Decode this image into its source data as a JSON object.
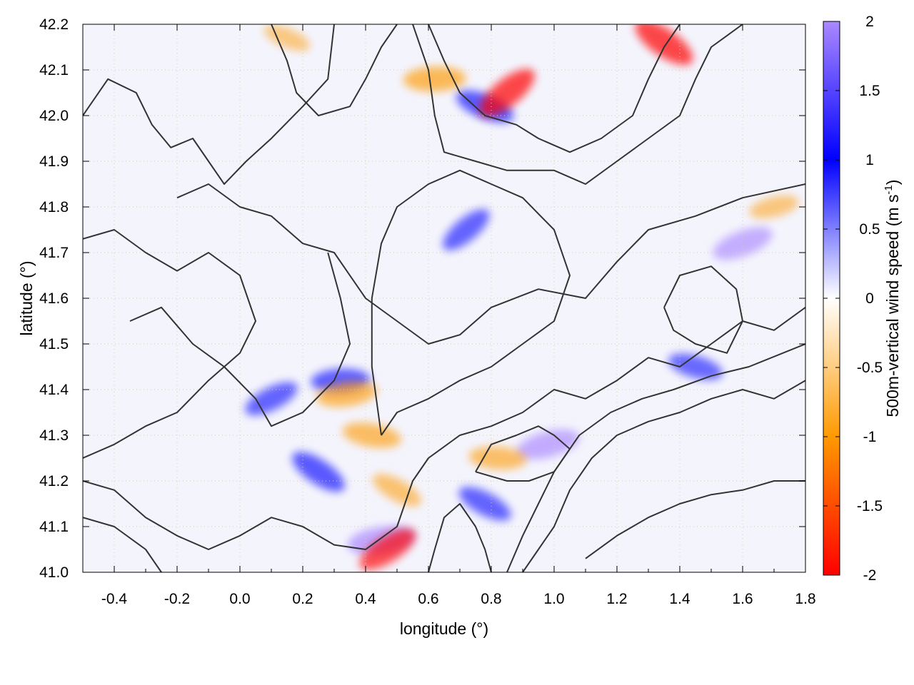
{
  "chart_data": {
    "type": "heatmap",
    "title": "",
    "xlabel": "longitude (°)",
    "ylabel": "latitude (°)",
    "colorbar_label": "500m-vertical wind speed (m s",
    "colorbar_label_sup": "-1",
    "colorbar_label_end": ")",
    "xlim": [
      -0.5,
      1.8
    ],
    "ylim": [
      41.0,
      42.2
    ],
    "clim": [
      -2,
      2
    ],
    "grid": true,
    "x_ticks": [
      -0.4,
      -0.2,
      0.0,
      0.2,
      0.4,
      0.6,
      0.8,
      1.0,
      1.2,
      1.4,
      1.6,
      1.8
    ],
    "x_tick_labels": [
      "-0.4",
      "-0.2",
      "0.0",
      "0.2",
      "0.4",
      "0.6",
      "0.8",
      "1.0",
      "1.2",
      "1.4",
      "1.6",
      "1.8"
    ],
    "y_ticks": [
      41.0,
      41.1,
      41.2,
      41.3,
      41.4,
      41.5,
      41.6,
      41.7,
      41.8,
      41.9,
      42.0,
      42.1,
      42.2
    ],
    "y_tick_labels": [
      "41.0",
      "41.1",
      "41.2",
      "41.3",
      "41.4",
      "41.5",
      "41.6",
      "41.7",
      "41.8",
      "41.9",
      "42.0",
      "42.1",
      "42.2"
    ],
    "colorbar_ticks": [
      2,
      1.5,
      1,
      0.5,
      0,
      -0.5,
      -1,
      -1.5,
      -2
    ],
    "colorbar_tick_labels": [
      "2",
      "1.5",
      "1",
      "0.5",
      "0",
      "-0.5",
      "-1",
      "-1.5",
      "-2"
    ],
    "colormap": [
      "#ff0000",
      "#ff9900",
      "#ffffff",
      "#0000ff",
      "#aa88ff"
    ],
    "contour_color": "#333333",
    "features": [
      {
        "type": "updraft",
        "lon": 0.72,
        "lat": 41.75,
        "value": 1.2
      },
      {
        "type": "updraft",
        "lon": 0.32,
        "lat": 41.42,
        "value": 1.3
      },
      {
        "type": "updraft",
        "lon": 0.25,
        "lat": 41.22,
        "value": 1.4
      },
      {
        "type": "updraft",
        "lon": 0.45,
        "lat": 41.07,
        "value": 1.8
      },
      {
        "type": "updraft",
        "lon": 0.78,
        "lat": 41.15,
        "value": 1.2
      },
      {
        "type": "updraft",
        "lon": 0.98,
        "lat": 41.28,
        "value": 1.6
      },
      {
        "type": "updraft",
        "lon": 0.78,
        "lat": 42.02,
        "value": 1.4
      },
      {
        "type": "updraft",
        "lon": 1.6,
        "lat": 41.72,
        "value": 1.5
      },
      {
        "type": "updraft",
        "lon": 1.45,
        "lat": 41.45,
        "value": 1.1
      },
      {
        "type": "updraft",
        "lon": 0.1,
        "lat": 41.38,
        "value": 1.2
      },
      {
        "type": "downdraft",
        "lon": 0.42,
        "lat": 41.3,
        "value": -1.3
      },
      {
        "type": "downdraft",
        "lon": 0.47,
        "lat": 41.05,
        "value": -1.6
      },
      {
        "type": "downdraft",
        "lon": 0.82,
        "lat": 41.25,
        "value": -1.2
      },
      {
        "type": "downdraft",
        "lon": 0.85,
        "lat": 42.05,
        "value": -1.8
      },
      {
        "type": "downdraft",
        "lon": 0.62,
        "lat": 42.08,
        "value": -1.5
      },
      {
        "type": "downdraft",
        "lon": 1.35,
        "lat": 42.16,
        "value": -1.8
      },
      {
        "type": "downdraft",
        "lon": 0.34,
        "lat": 41.39,
        "value": -1.4
      },
      {
        "type": "downdraft",
        "lon": 0.5,
        "lat": 41.18,
        "value": -1.0
      },
      {
        "type": "downdraft",
        "lon": 1.7,
        "lat": 41.8,
        "value": -0.8
      },
      {
        "type": "downdraft",
        "lon": 0.15,
        "lat": 42.17,
        "value": -0.7
      }
    ],
    "contours": [
      [
        [
          -0.5,
          42.0
        ],
        [
          -0.42,
          42.08
        ],
        [
          -0.33,
          42.05
        ],
        [
          -0.28,
          41.98
        ],
        [
          -0.22,
          41.93
        ],
        [
          -0.15,
          41.95
        ],
        [
          -0.1,
          41.9
        ],
        [
          -0.05,
          41.85
        ],
        [
          0.02,
          41.9
        ],
        [
          0.1,
          41.95
        ],
        [
          0.2,
          42.02
        ],
        [
          0.28,
          42.08
        ],
        [
          0.3,
          42.2
        ]
      ],
      [
        [
          -0.2,
          41.82
        ],
        [
          -0.1,
          41.85
        ],
        [
          0.0,
          41.8
        ],
        [
          0.1,
          41.78
        ],
        [
          0.2,
          41.72
        ],
        [
          0.3,
          41.7
        ],
        [
          0.4,
          41.6
        ],
        [
          0.5,
          41.55
        ],
        [
          0.6,
          41.5
        ],
        [
          0.7,
          41.52
        ],
        [
          0.8,
          41.58
        ],
        [
          0.95,
          41.62
        ],
        [
          1.1,
          41.6
        ],
        [
          1.2,
          41.68
        ],
        [
          1.3,
          41.75
        ],
        [
          1.45,
          41.78
        ],
        [
          1.6,
          41.82
        ],
        [
          1.8,
          41.85
        ]
      ],
      [
        [
          -0.5,
          41.73
        ],
        [
          -0.4,
          41.75
        ],
        [
          -0.3,
          41.7
        ],
        [
          -0.2,
          41.66
        ],
        [
          -0.1,
          41.7
        ],
        [
          0.0,
          41.65
        ],
        [
          0.05,
          41.55
        ],
        [
          0.0,
          41.48
        ],
        [
          -0.1,
          41.42
        ],
        [
          -0.2,
          41.35
        ],
        [
          -0.3,
          41.32
        ],
        [
          -0.4,
          41.28
        ],
        [
          -0.5,
          41.25
        ]
      ],
      [
        [
          -0.35,
          41.55
        ],
        [
          -0.25,
          41.58
        ],
        [
          -0.15,
          41.5
        ],
        [
          -0.05,
          41.45
        ],
        [
          0.05,
          41.38
        ],
        [
          0.1,
          41.32
        ],
        [
          0.2,
          41.35
        ],
        [
          0.3,
          41.42
        ],
        [
          0.35,
          41.5
        ],
        [
          0.32,
          41.6
        ],
        [
          0.28,
          41.7
        ]
      ],
      [
        [
          -0.5,
          41.2
        ],
        [
          -0.4,
          41.18
        ],
        [
          -0.3,
          41.12
        ],
        [
          -0.2,
          41.08
        ],
        [
          -0.1,
          41.05
        ],
        [
          0.0,
          41.08
        ],
        [
          0.1,
          41.12
        ],
        [
          0.2,
          41.1
        ],
        [
          0.3,
          41.06
        ],
        [
          0.4,
          41.05
        ],
        [
          0.5,
          41.1
        ],
        [
          0.55,
          41.2
        ],
        [
          0.6,
          41.25
        ],
        [
          0.7,
          41.3
        ],
        [
          0.8,
          41.32
        ],
        [
          0.9,
          41.35
        ],
        [
          1.0,
          41.4
        ],
        [
          1.1,
          41.38
        ],
        [
          1.2,
          41.42
        ],
        [
          1.3,
          41.47
        ],
        [
          1.4,
          41.45
        ],
        [
          1.5,
          41.5
        ],
        [
          1.6,
          41.55
        ],
        [
          1.7,
          41.53
        ],
        [
          1.8,
          41.58
        ]
      ],
      [
        [
          0.45,
          41.3
        ],
        [
          0.5,
          41.35
        ],
        [
          0.6,
          41.38
        ],
        [
          0.7,
          41.42
        ],
        [
          0.8,
          41.45
        ],
        [
          0.9,
          41.5
        ],
        [
          1.0,
          41.55
        ],
        [
          1.05,
          41.65
        ],
        [
          1.0,
          41.75
        ],
        [
          0.9,
          41.82
        ],
        [
          0.8,
          41.85
        ],
        [
          0.7,
          41.88
        ],
        [
          0.6,
          41.85
        ],
        [
          0.5,
          41.8
        ],
        [
          0.45,
          41.72
        ],
        [
          0.42,
          41.6
        ],
        [
          0.42,
          41.45
        ],
        [
          0.45,
          41.3
        ]
      ],
      [
        [
          0.9,
          41.0
        ],
        [
          0.95,
          41.05
        ],
        [
          1.0,
          41.1
        ],
        [
          1.05,
          41.18
        ],
        [
          1.12,
          41.25
        ],
        [
          1.2,
          41.3
        ],
        [
          1.3,
          41.33
        ],
        [
          1.4,
          41.35
        ],
        [
          1.5,
          41.38
        ],
        [
          1.6,
          41.4
        ],
        [
          1.7,
          41.38
        ],
        [
          1.8,
          41.42
        ]
      ],
      [
        [
          0.85,
          41.0
        ],
        [
          0.9,
          41.08
        ],
        [
          0.95,
          41.15
        ],
        [
          1.0,
          41.22
        ],
        [
          1.08,
          41.3
        ],
        [
          1.18,
          41.35
        ],
        [
          1.28,
          41.38
        ],
        [
          1.38,
          41.4
        ],
        [
          1.5,
          41.43
        ],
        [
          1.62,
          41.45
        ],
        [
          1.8,
          41.5
        ]
      ],
      [
        [
          1.1,
          41.03
        ],
        [
          1.2,
          41.08
        ],
        [
          1.3,
          41.12
        ],
        [
          1.4,
          41.15
        ],
        [
          1.5,
          41.17
        ],
        [
          1.6,
          41.18
        ],
        [
          1.7,
          41.2
        ],
        [
          1.8,
          41.2
        ]
      ],
      [
        [
          0.6,
          42.2
        ],
        [
          0.65,
          42.12
        ],
        [
          0.7,
          42.05
        ],
        [
          0.78,
          42.0
        ],
        [
          0.88,
          41.98
        ],
        [
          0.95,
          41.95
        ],
        [
          1.05,
          41.92
        ],
        [
          1.15,
          41.95
        ],
        [
          1.25,
          42.0
        ],
        [
          1.3,
          42.08
        ],
        [
          1.35,
          42.15
        ],
        [
          1.4,
          42.2
        ]
      ],
      [
        [
          0.55,
          42.2
        ],
        [
          0.6,
          42.1
        ],
        [
          0.62,
          42.0
        ],
        [
          0.65,
          41.92
        ],
        [
          0.75,
          41.9
        ],
        [
          0.85,
          41.88
        ],
        [
          1.0,
          41.88
        ],
        [
          1.1,
          41.85
        ],
        [
          1.2,
          41.9
        ],
        [
          1.3,
          41.95
        ],
        [
          1.4,
          42.0
        ],
        [
          1.45,
          42.08
        ],
        [
          1.5,
          42.15
        ],
        [
          1.6,
          42.2
        ]
      ],
      [
        [
          0.1,
          42.2
        ],
        [
          0.15,
          42.12
        ],
        [
          0.18,
          42.05
        ],
        [
          0.25,
          42.0
        ],
        [
          0.35,
          42.02
        ],
        [
          0.4,
          42.08
        ],
        [
          0.45,
          42.15
        ],
        [
          0.5,
          42.2
        ]
      ],
      [
        [
          0.75,
          41.22
        ],
        [
          0.8,
          41.28
        ],
        [
          0.88,
          41.3
        ],
        [
          0.95,
          41.32
        ],
        [
          1.0,
          41.3
        ],
        [
          1.05,
          41.27
        ],
        [
          1.0,
          41.22
        ],
        [
          0.92,
          41.2
        ],
        [
          0.85,
          41.2
        ],
        [
          0.75,
          41.22
        ]
      ],
      [
        [
          1.35,
          41.58
        ],
        [
          1.4,
          41.65
        ],
        [
          1.5,
          41.67
        ],
        [
          1.58,
          41.62
        ],
        [
          1.6,
          41.55
        ],
        [
          1.55,
          41.48
        ],
        [
          1.45,
          41.5
        ],
        [
          1.38,
          41.53
        ],
        [
          1.35,
          41.58
        ]
      ],
      [
        [
          -0.5,
          41.12
        ],
        [
          -0.4,
          41.1
        ],
        [
          -0.3,
          41.05
        ],
        [
          -0.25,
          41.0
        ]
      ],
      [
        [
          0.6,
          41.0
        ],
        [
          0.62,
          41.05
        ],
        [
          0.65,
          41.12
        ],
        [
          0.7,
          41.15
        ],
        [
          0.75,
          41.1
        ],
        [
          0.78,
          41.05
        ],
        [
          0.8,
          41.0
        ]
      ]
    ]
  }
}
